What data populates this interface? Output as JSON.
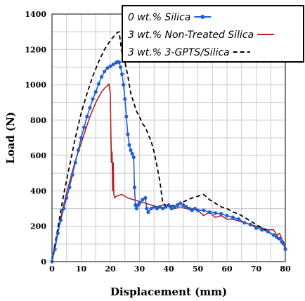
{
  "chart_data": {
    "type": "line",
    "xlabel": "Displacement (mm)",
    "ylabel": "Load (N)",
    "xlim": [
      0,
      80
    ],
    "ylim": [
      0,
      1400
    ],
    "xticks": [
      "0",
      "10",
      "20",
      "30",
      "40",
      "50",
      "60",
      "70",
      "80"
    ],
    "yticks": [
      "0",
      "200",
      "400",
      "600",
      "800",
      "1000",
      "1200",
      "1400"
    ],
    "grid": true,
    "legend_position": "top-right",
    "series": [
      {
        "name": "0 wt.% Silica",
        "color": "#1f5fd6",
        "style": "line-markers",
        "x": [
          0,
          1,
          2,
          3,
          4,
          5,
          6,
          7,
          8,
          9,
          10,
          11,
          12,
          13,
          14,
          15,
          16,
          17,
          18,
          19,
          20,
          21,
          22,
          22.5,
          23,
          23.5,
          24,
          24.5,
          25,
          25.5,
          26,
          26.5,
          27,
          27.5,
          28,
          28.3,
          28.6,
          29,
          29.5,
          30,
          31,
          32,
          32.5,
          33,
          34,
          35,
          36,
          37,
          38,
          39,
          40,
          41,
          42,
          43,
          44,
          45,
          46,
          47,
          48,
          49,
          50,
          52,
          54,
          56,
          58,
          60,
          62,
          64,
          66,
          68,
          70,
          72,
          74,
          76,
          77,
          78,
          79,
          80
        ],
        "y": [
          0,
          70,
          160,
          235,
          300,
          360,
          420,
          490,
          560,
          630,
          700,
          760,
          820,
          870,
          920,
          960,
          1005,
          1045,
          1075,
          1095,
          1105,
          1115,
          1125,
          1130,
          1128,
          1100,
          1060,
          1000,
          920,
          820,
          720,
          660,
          630,
          610,
          590,
          420,
          320,
          300,
          320,
          330,
          350,
          360,
          300,
          280,
          300,
          310,
          300,
          310,
          300,
          310,
          320,
          300,
          310,
          320,
          330,
          320,
          310,
          300,
          290,
          300,
          290,
          290,
          280,
          275,
          270,
          260,
          250,
          240,
          220,
          210,
          190,
          180,
          170,
          150,
          140,
          130,
          110,
          70
        ]
      },
      {
        "name": "3 wt.% Non-Treated Silica",
        "color": "#b22222",
        "style": "solid",
        "x": [
          0,
          1,
          2,
          3,
          4,
          5,
          6,
          7,
          8,
          9,
          10,
          11,
          12,
          13,
          14,
          15,
          16,
          17,
          18,
          19,
          19.5,
          20,
          20.2,
          20.4,
          20.6,
          20.8,
          21,
          21.2,
          21.5,
          22,
          24,
          26,
          28,
          30,
          32,
          34,
          36,
          38,
          40,
          42,
          44,
          46,
          48,
          50,
          52,
          54,
          56,
          58,
          60,
          62,
          64,
          66,
          68,
          70,
          72,
          74,
          76,
          77,
          78,
          79,
          80
        ],
        "y": [
          0,
          80,
          170,
          250,
          320,
          390,
          450,
          510,
          570,
          620,
          670,
          720,
          770,
          820,
          860,
          900,
          930,
          960,
          980,
          995,
          1005,
          950,
          720,
          560,
          620,
          400,
          560,
          380,
          360,
          370,
          380,
          360,
          350,
          340,
          330,
          320,
          310,
          320,
          310,
          300,
          310,
          300,
          300,
          290,
          260,
          280,
          250,
          260,
          240,
          240,
          230,
          220,
          210,
          200,
          190,
          180,
          180,
          150,
          160,
          120,
          90
        ]
      },
      {
        "name": "3 wt.% 3-GPTS/Silica",
        "color": "#000000",
        "style": "dashed",
        "x": [
          0,
          2,
          4,
          6,
          8,
          10,
          12,
          14,
          16,
          18,
          20,
          21,
          22,
          23,
          24,
          25,
          26,
          27,
          28,
          29,
          30,
          31,
          32,
          33,
          34,
          35,
          36,
          37,
          38,
          40,
          44,
          48,
          50,
          52,
          54,
          56,
          58,
          60,
          62,
          64,
          66,
          68,
          70,
          72,
          74,
          76,
          78,
          80
        ],
        "y": [
          0,
          190,
          380,
          540,
          700,
          840,
          950,
          1050,
          1130,
          1200,
          1250,
          1270,
          1290,
          1300,
          1180,
          1130,
          1050,
          950,
          900,
          850,
          820,
          780,
          760,
          720,
          680,
          620,
          540,
          450,
          330,
          310,
          330,
          360,
          370,
          380,
          350,
          330,
          310,
          300,
          280,
          270,
          250,
          230,
          210,
          190,
          170,
          150,
          120,
          80
        ]
      }
    ]
  }
}
